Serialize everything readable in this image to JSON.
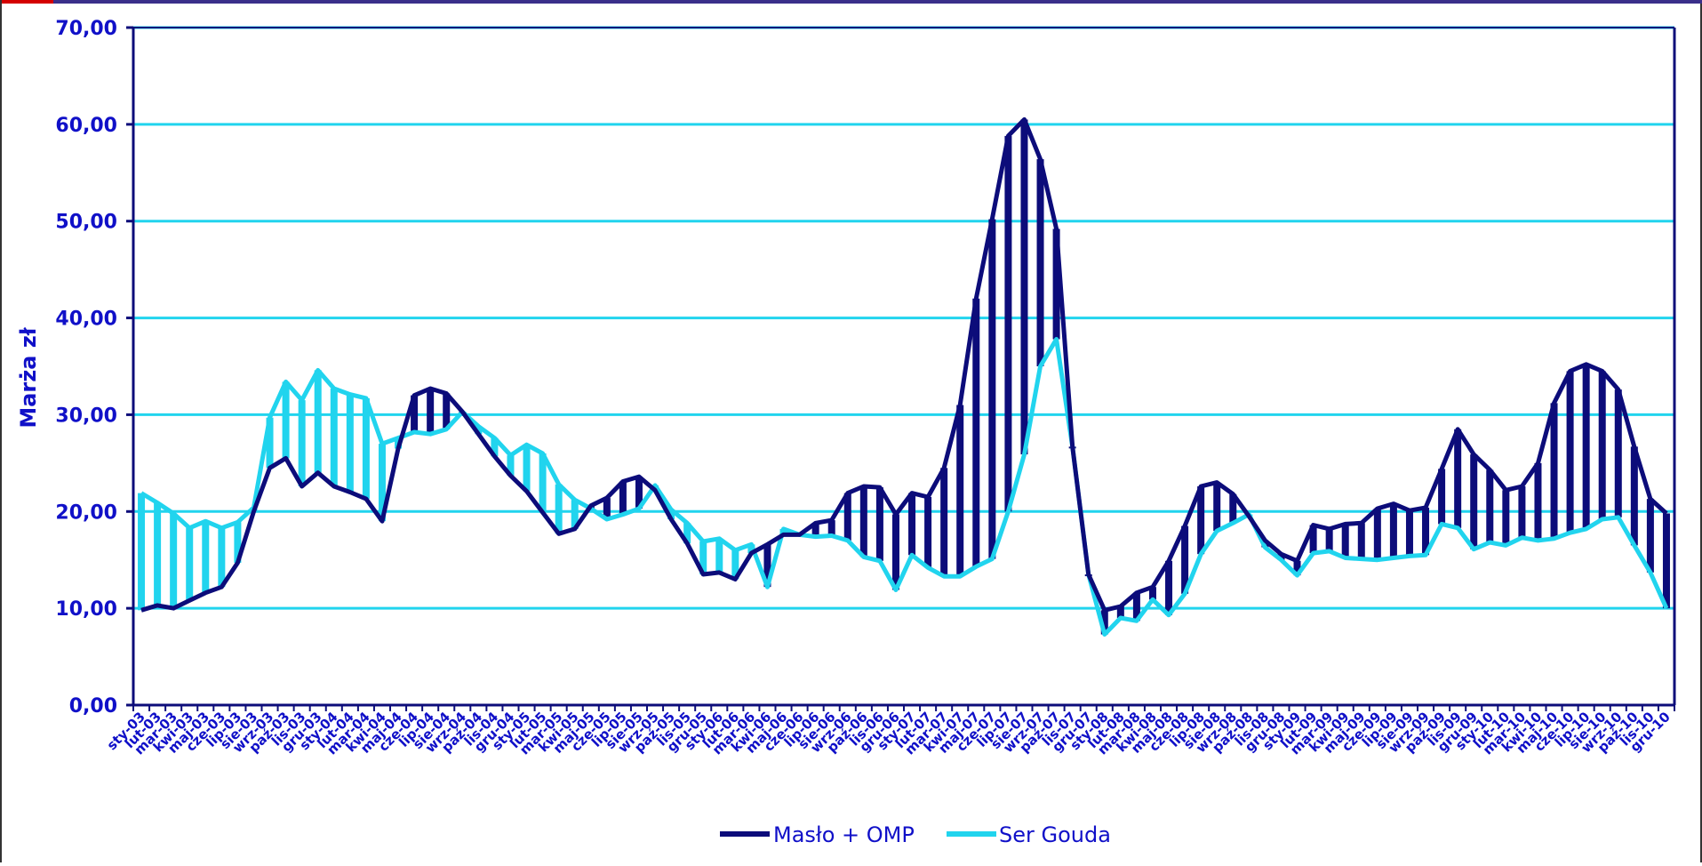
{
  "colors": {
    "maslo": "#0c0c7a",
    "ser": "#21d4ee",
    "grid": "#21d4ee",
    "axis": "#0c0c7a",
    "text": "#1010c8"
  },
  "chart_data": {
    "type": "line",
    "ylabel": "Marża zł",
    "ylim": [
      0,
      70
    ],
    "yticks": [
      "0,00",
      "10,00",
      "20,00",
      "30,00",
      "40,00",
      "50,00",
      "60,00",
      "70,00"
    ],
    "grid": "horizontal",
    "legend_position": "bottom",
    "categories": [
      "sty-03",
      "lut-03",
      "mar-03",
      "kwi-03",
      "maj-03",
      "cze-03",
      "lip-03",
      "sie-03",
      "wrz-03",
      "paź-03",
      "lis-03",
      "gru-03",
      "sty-04",
      "lut-04",
      "mar-04",
      "kwi-04",
      "maj-04",
      "cze-04",
      "lip-04",
      "sie-04",
      "wrz-04",
      "paź-04",
      "lis-04",
      "gru-04",
      "sty-05",
      "lut-05",
      "mar-05",
      "kwi-05",
      "maj-05",
      "cze-05",
      "lip-05",
      "sie-05",
      "wrz-05",
      "paź-05",
      "lis-05",
      "gru-05",
      "sty-06",
      "lut-06",
      "mar-06",
      "kwi-06",
      "maj-06",
      "cze-06",
      "lip-06",
      "sie-06",
      "wrz-06",
      "paź-06",
      "lis-06",
      "gru-06",
      "sty-07",
      "lut-07",
      "mar-07",
      "kwi-07",
      "maj-07",
      "cze-07",
      "lip-07",
      "sie-07",
      "wrz-07",
      "paź-07",
      "lis-07",
      "gru-07",
      "sty-08",
      "lut-08",
      "mar-08",
      "kwi-08",
      "maj-08",
      "cze-08",
      "lip-08",
      "sie-08",
      "wrz-08",
      "paź-08",
      "lis-08",
      "gru-08",
      "sty-09",
      "lut-09",
      "mar-09",
      "kwi-09",
      "maj-09",
      "cze-09",
      "lip-09",
      "sie-09",
      "wrz-09",
      "paź-09",
      "lis-09",
      "gru-09",
      "sty-10",
      "lut-10",
      "mar-10",
      "kwi-10",
      "maj-10",
      "cze-10",
      "lip-10",
      "sie-10",
      "wrz-10",
      "paź-10",
      "lis-10",
      "gru-10"
    ],
    "series": [
      {
        "name": "Masło + OMP",
        "values": [
          9.8,
          10.3,
          10.0,
          10.8,
          11.6,
          12.2,
          14.7,
          20.0,
          24.5,
          25.5,
          22.6,
          24.0,
          22.6,
          22.0,
          21.3,
          19.0,
          26.5,
          32.0,
          32.7,
          32.2,
          30.3,
          28.0,
          25.7,
          23.7,
          22.1,
          19.9,
          17.7,
          18.2,
          20.6,
          21.4,
          23.1,
          23.6,
          22.2,
          19.2,
          16.7,
          13.5,
          13.7,
          13.0,
          15.7,
          16.6,
          17.6,
          17.6,
          18.8,
          19.1,
          21.9,
          22.6,
          22.5,
          19.7,
          21.9,
          21.5,
          24.5,
          31.0,
          42.0,
          50.2,
          58.8,
          60.5,
          56.4,
          49.2,
          26.7,
          13.5,
          9.8,
          10.2,
          11.6,
          12.2,
          14.9,
          18.5,
          22.6,
          23.0,
          21.8,
          19.5,
          17.0,
          15.6,
          14.9,
          18.6,
          18.2,
          18.7,
          18.8,
          20.3,
          20.8,
          20.1,
          20.4,
          24.4,
          28.5,
          25.9,
          24.3,
          22.2,
          22.6,
          25.0,
          31.2,
          34.5,
          35.2,
          34.5,
          32.6,
          26.7,
          21.3,
          19.8
        ]
      },
      {
        "name": "Ser Gouda",
        "values": [
          21.9,
          20.9,
          19.8,
          18.3,
          19.0,
          18.3,
          18.9,
          20.4,
          29.7,
          33.4,
          31.5,
          34.6,
          32.7,
          32.1,
          31.7,
          27.0,
          27.6,
          28.2,
          28.0,
          28.5,
          30.3,
          28.8,
          27.6,
          25.8,
          26.9,
          26.0,
          22.8,
          21.2,
          20.3,
          19.2,
          19.7,
          20.3,
          22.7,
          20.2,
          18.8,
          16.9,
          17.2,
          16.0,
          16.6,
          12.2,
          18.2,
          17.6,
          17.4,
          17.5,
          17.0,
          15.3,
          14.9,
          11.9,
          15.5,
          14.2,
          13.3,
          13.3,
          14.3,
          15.1,
          20.0,
          25.9,
          35.0,
          37.8,
          26.7,
          13.5,
          7.3,
          9.0,
          8.7,
          10.9,
          9.3,
          11.5,
          15.6,
          18.0,
          18.8,
          19.7,
          16.3,
          15.0,
          13.4,
          15.7,
          15.9,
          15.2,
          15.1,
          15.0,
          15.2,
          15.4,
          15.5,
          18.7,
          18.3,
          16.1,
          16.8,
          16.5,
          17.3,
          17.0,
          17.2,
          17.8,
          18.2,
          19.2,
          19.4,
          16.5,
          13.7,
          10.0
        ]
      }
    ]
  }
}
